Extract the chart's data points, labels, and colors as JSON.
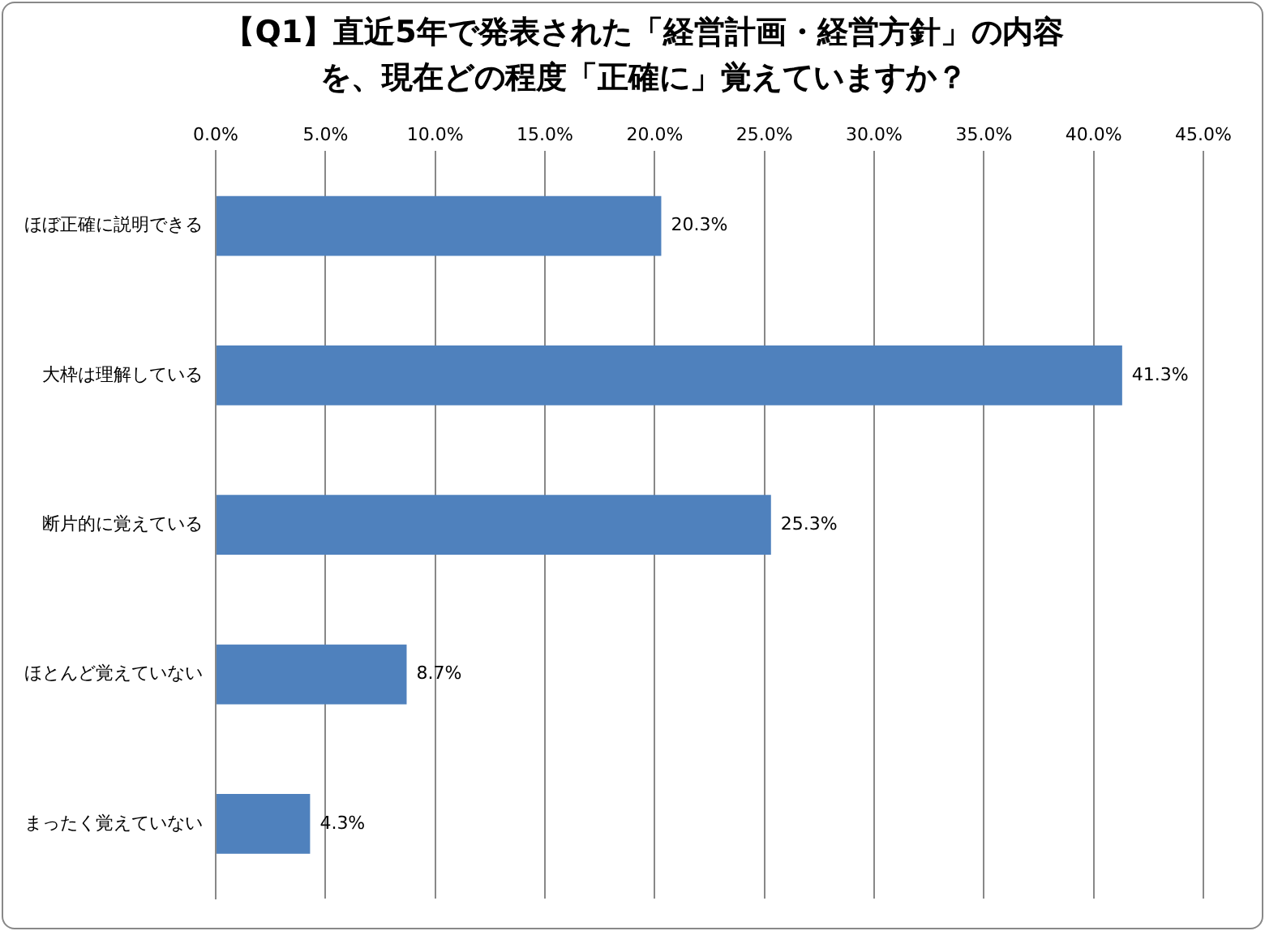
{
  "chart_data": {
    "type": "bar",
    "orientation": "horizontal",
    "title": "【Q1】直近5年で発表された「経営計画・経営方針」の内容を、現在どの程度「正確に」覚えていますか？",
    "categories": [
      "ほぼ正確に説明できる",
      "大枠は理解している",
      "断片的に覚えている",
      "ほとんど覚えていない",
      "まったく覚えていない"
    ],
    "values": [
      20.3,
      41.3,
      25.3,
      8.7,
      4.3
    ],
    "value_labels": [
      "20.3%",
      "41.3%",
      "25.3%",
      "8.7%",
      "4.3%"
    ],
    "color": "#4f81bd",
    "xlim": [
      0,
      45
    ],
    "xticks": [
      {
        "value": 0,
        "label": "0.0%"
      },
      {
        "value": 5,
        "label": "5.0%"
      },
      {
        "value": 10,
        "label": "10.0%"
      },
      {
        "value": 15,
        "label": "15.0%"
      },
      {
        "value": 20,
        "label": "20.0%"
      },
      {
        "value": 25,
        "label": "25.0%"
      },
      {
        "value": 30,
        "label": "30.0%"
      },
      {
        "value": 35,
        "label": "35.0%"
      },
      {
        "value": 40,
        "label": "40.0%"
      },
      {
        "value": 45,
        "label": "45.0%"
      }
    ],
    "grid": "x",
    "legend": false
  }
}
